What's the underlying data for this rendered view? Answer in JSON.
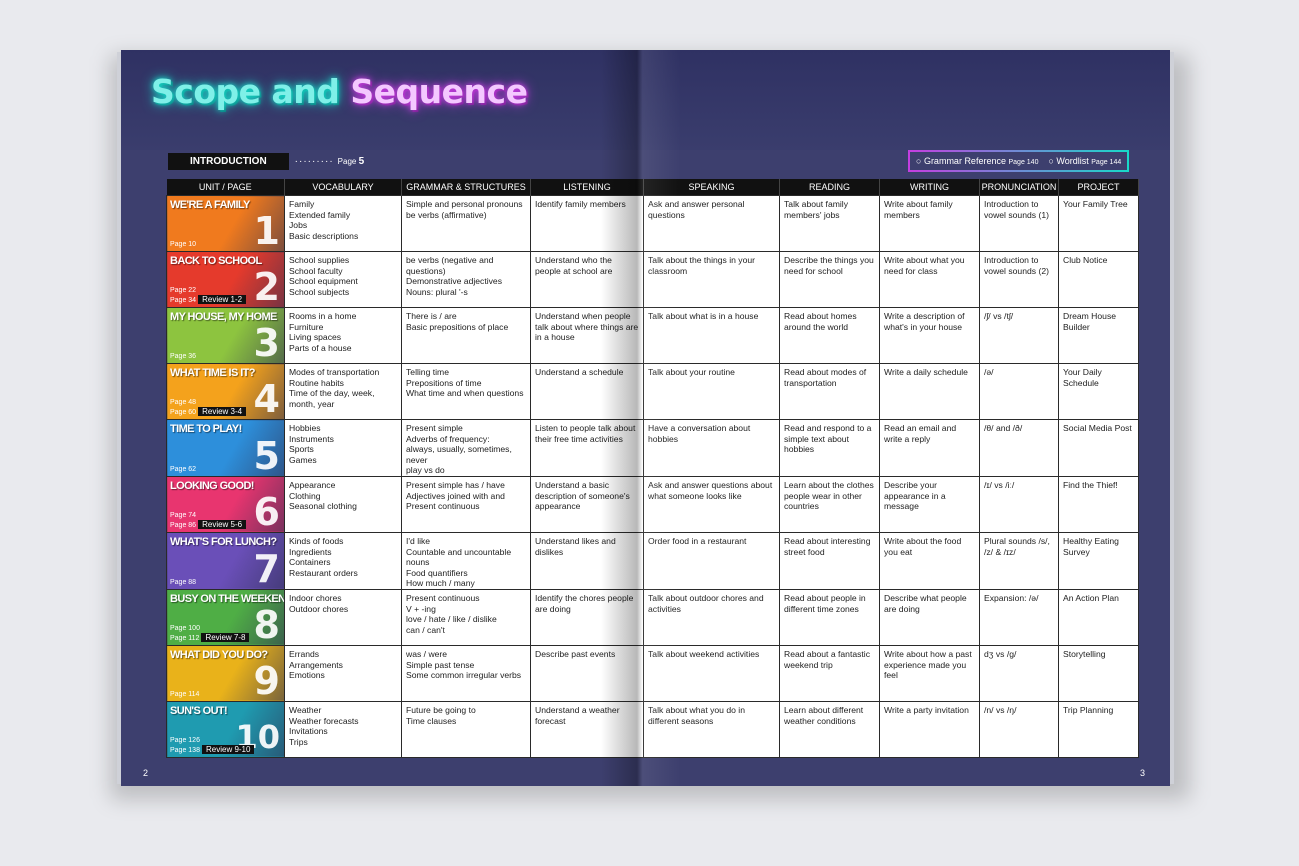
{
  "title": {
    "word1": "Scope and",
    "word2": "Sequence"
  },
  "intro": {
    "label": "INTRODUCTION",
    "dots": "·········",
    "page_prefix": "Page",
    "page": "5"
  },
  "refs": {
    "grammar": "Grammar Reference",
    "grammar_page": "Page 140",
    "wordlist": "Wordlist",
    "wordlist_page": "Page 144"
  },
  "headers": [
    "UNIT / PAGE",
    "VOCABULARY",
    "GRAMMAR & STRUCTURES",
    "LISTENING",
    "SPEAKING",
    "READING",
    "WRITING",
    "PRONUNCIATION",
    "PROJECT"
  ],
  "units": [
    {
      "name": "WE'RE A FAMILY",
      "number": "1",
      "pages": [
        "Page 10"
      ],
      "review": "",
      "color": "#f07a1e",
      "vocabulary": [
        "Family",
        "Extended family",
        "Jobs",
        "Basic descriptions"
      ],
      "grammar": [
        "Simple and personal pronouns",
        "be verbs (affirmative)"
      ],
      "listening": "Identify family members",
      "speaking": "Ask and answer personal questions",
      "reading": "Talk about family members' jobs",
      "writing": "Write about family members",
      "pronunciation": "Introduction to vowel sounds (1)",
      "project": "Your Family Tree"
    },
    {
      "name": "BACK TO SCHOOL",
      "number": "2",
      "pages": [
        "Page 22",
        "Page 34"
      ],
      "review": "Review 1-2",
      "color": "#e53a2c",
      "vocabulary": [
        "School supplies",
        "School faculty",
        "School equipment",
        "School subjects"
      ],
      "grammar": [
        "be verbs (negative and questions)",
        "Demonstrative adjectives",
        "Nouns: plural '-s"
      ],
      "listening": "Understand who the people at school are",
      "speaking": "Talk about the things in your classroom",
      "reading": "Describe the things you need for school",
      "writing": "Write about what you need for class",
      "pronunciation": "Introduction to vowel sounds (2)",
      "project": "Club Notice"
    },
    {
      "name": "MY HOUSE, MY HOME",
      "number": "3",
      "pages": [
        "Page 36"
      ],
      "review": "",
      "color": "#8dc43f",
      "vocabulary": [
        "Rooms in a home",
        "Furniture",
        "Living spaces",
        "Parts of a house"
      ],
      "grammar": [
        "There is / are",
        "Basic prepositions of place"
      ],
      "listening": "Understand when people talk about where things are in a house",
      "speaking": "Talk about what is in a house",
      "reading": "Read about homes around the world",
      "writing": "Write a description of what's in your house",
      "pronunciation": "/ʃ/ vs /tʃ/",
      "project": "Dream House Builder"
    },
    {
      "name": "WHAT TIME IS IT?",
      "number": "4",
      "pages": [
        "Page 48",
        "Page 60"
      ],
      "review": "Review 3-4",
      "color": "#f4a21c",
      "vocabulary": [
        "Modes of transportation",
        "Routine habits",
        "Time of the day, week, month, year"
      ],
      "grammar": [
        "Telling time",
        "Prepositions of time",
        "What time and when questions"
      ],
      "listening": "Understand a schedule",
      "speaking": "Talk about your routine",
      "reading": "Read about modes of transportation",
      "writing": "Write a daily schedule",
      "pronunciation": "/ə/",
      "project": "Your Daily Schedule"
    },
    {
      "name": "TIME TO PLAY!",
      "number": "5",
      "pages": [
        "Page 62"
      ],
      "review": "",
      "color": "#2d8fdb",
      "vocabulary": [
        "Hobbies",
        "Instruments",
        "Sports",
        "Games"
      ],
      "grammar": [
        "Present simple",
        "Adverbs of frequency:",
        "always, usually, sometimes, never",
        "play vs do"
      ],
      "listening": "Listen to people talk about their free time activities",
      "speaking": "Have a conversation about hobbies",
      "reading": "Read and respond to a simple text about hobbies",
      "writing": "Read an email and write a reply",
      "pronunciation": "/θ/ and /ð/",
      "project": "Social Media Post"
    },
    {
      "name": "LOOKING GOOD!",
      "number": "6",
      "pages": [
        "Page 74",
        "Page 86"
      ],
      "review": "Review 5-6",
      "color": "#e8356f",
      "vocabulary": [
        "Appearance",
        "Clothing",
        "Seasonal clothing"
      ],
      "grammar": [
        "Present simple has / have",
        "Adjectives joined with and",
        "Present continuous"
      ],
      "listening": "Understand a basic description of someone's appearance",
      "speaking": "Ask and answer questions about what someone looks like",
      "reading": "Learn about the clothes people wear in other countries",
      "writing": "Describe your appearance in a message",
      "pronunciation": "/ɪ/ vs /iː/",
      "project": "Find the Thief!"
    },
    {
      "name": "WHAT'S FOR LUNCH?",
      "number": "7",
      "pages": [
        "Page 88"
      ],
      "review": "",
      "color": "#6a4fb8",
      "vocabulary": [
        "Kinds of foods",
        "Ingredients",
        "Containers",
        "Restaurant orders"
      ],
      "grammar": [
        "I'd like",
        "Countable and uncountable nouns",
        "Food quantifiers",
        "How much / many"
      ],
      "listening": "Understand likes and dislikes",
      "speaking": "Order food in a restaurant",
      "reading": "Read about interesting street food",
      "writing": "Write about the food you eat",
      "pronunciation": "Plural sounds /s/, /z/ & /ɪz/",
      "project": "Healthy Eating Survey"
    },
    {
      "name": "BUSY ON THE WEEKEND",
      "number": "8",
      "pages": [
        "Page 100",
        "Page 112"
      ],
      "review": "Review 7-8",
      "color": "#4fae45",
      "vocabulary": [
        "Indoor chores",
        "Outdoor chores"
      ],
      "grammar": [
        "Present continuous",
        "V + -ing",
        "love / hate / like / dislike",
        "can / can't"
      ],
      "listening": "Identify the chores people are doing",
      "speaking": "Talk about outdoor chores and activities",
      "reading": "Read about people in different time zones",
      "writing": "Describe what people are doing",
      "pronunciation": "Expansion: /ə/",
      "project": "An Action Plan"
    },
    {
      "name": "WHAT DID YOU DO?",
      "number": "9",
      "pages": [
        "Page 114"
      ],
      "review": "",
      "color": "#e9b21a",
      "vocabulary": [
        "Errands",
        "Arrangements",
        "Emotions"
      ],
      "grammar": [
        "was / were",
        "Simple past tense",
        "Some common irregular verbs"
      ],
      "listening": "Describe past events",
      "speaking": "Talk about weekend activities",
      "reading": "Read about a fantastic weekend trip",
      "writing": "Write about how a past experience made you feel",
      "pronunciation": "dʒ vs /g/",
      "project": "Storytelling"
    },
    {
      "name": "SUN'S OUT!",
      "number": "10",
      "pages": [
        "Page 126",
        "Page 138"
      ],
      "review": "Review 9-10",
      "color": "#1f9bb0",
      "vocabulary": [
        "Weather",
        "Weather forecasts",
        "Invitations",
        "Trips"
      ],
      "grammar": [
        "Future be going to",
        "Time clauses"
      ],
      "listening": "Understand a weather forecast",
      "speaking": "Talk about what you do in different seasons",
      "reading": "Learn about different weather conditions",
      "writing": "Write a party invitation",
      "pronunciation": "/n/ vs /ŋ/",
      "project": "Trip Planning"
    }
  ],
  "page_left": "2",
  "page_right": "3"
}
